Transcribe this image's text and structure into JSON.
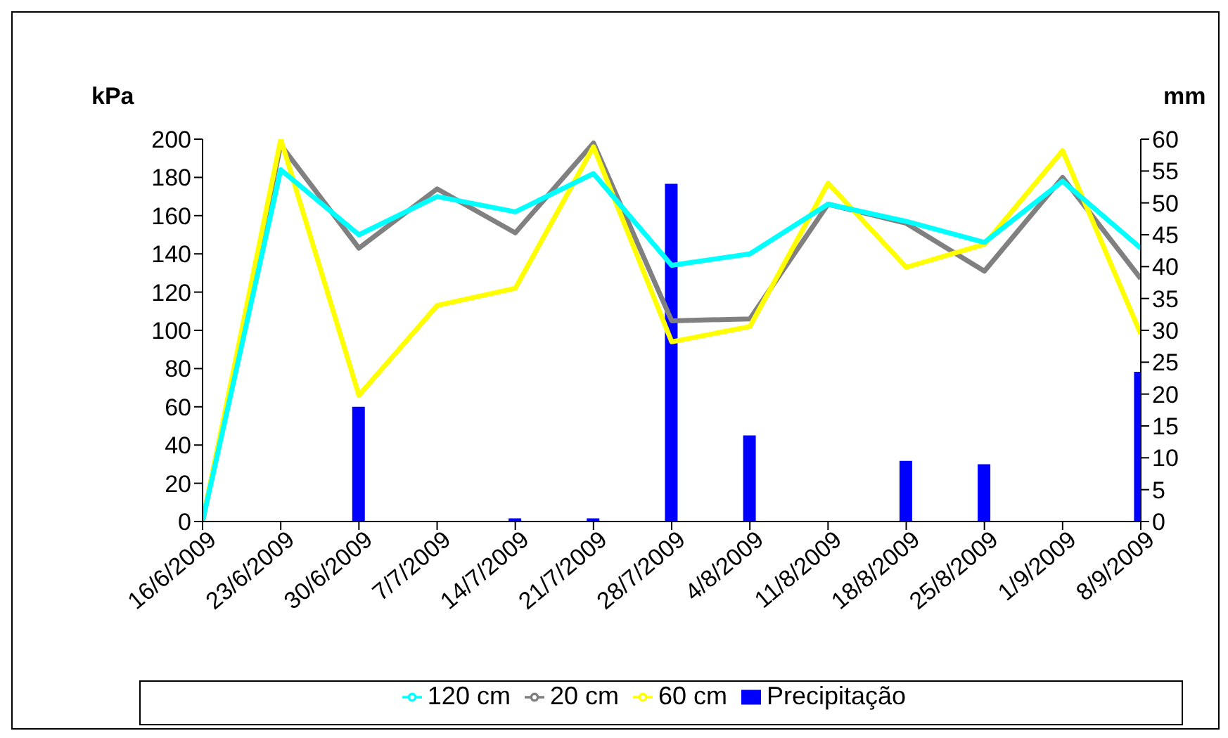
{
  "chart_data": {
    "type": "line",
    "ylabel": "kPa",
    "y2label": "mm",
    "categories": [
      "16/6/2009",
      "23/6/2009",
      "30/6/2009",
      "7/7/2009",
      "14/7/2009",
      "21/7/2009",
      "28/7/2009",
      "4/8/2009",
      "11/8/2009",
      "18/8/2009",
      "25/8/2009",
      "1/9/2009",
      "8/9/2009"
    ],
    "series": [
      {
        "name": "Precipitação",
        "type": "bar",
        "axis": "y2",
        "color": "#0000ff",
        "values": [
          0,
          0,
          18,
          0,
          0.5,
          0.5,
          53,
          13.5,
          0,
          9.5,
          9,
          0,
          23.5
        ]
      },
      {
        "name": "20 cm",
        "color": "#808080",
        "values": [
          0,
          197,
          143,
          174,
          151,
          198,
          105,
          106,
          166,
          156,
          131,
          180,
          127
        ]
      },
      {
        "name": "60 cm",
        "color": "#ffff00",
        "values": [
          0,
          200,
          66,
          113,
          122,
          196,
          94,
          102,
          177,
          133,
          145,
          194,
          98
        ]
      },
      {
        "name": "120 cm",
        "color": "#00ffff",
        "values": [
          0,
          184,
          150,
          170,
          162,
          182,
          134,
          140,
          166,
          157,
          146,
          178,
          143
        ]
      }
    ],
    "ylim": [
      0,
      200
    ],
    "yticks": [
      0,
      20,
      40,
      60,
      80,
      100,
      120,
      140,
      160,
      180,
      200
    ],
    "y2lim": [
      0,
      60
    ],
    "y2ticks": [
      0,
      5,
      10,
      15,
      20,
      25,
      30,
      35,
      40,
      45,
      50,
      55,
      60
    ],
    "grid": false,
    "legend": "bottom",
    "marker": "none",
    "line_style": "solid"
  }
}
